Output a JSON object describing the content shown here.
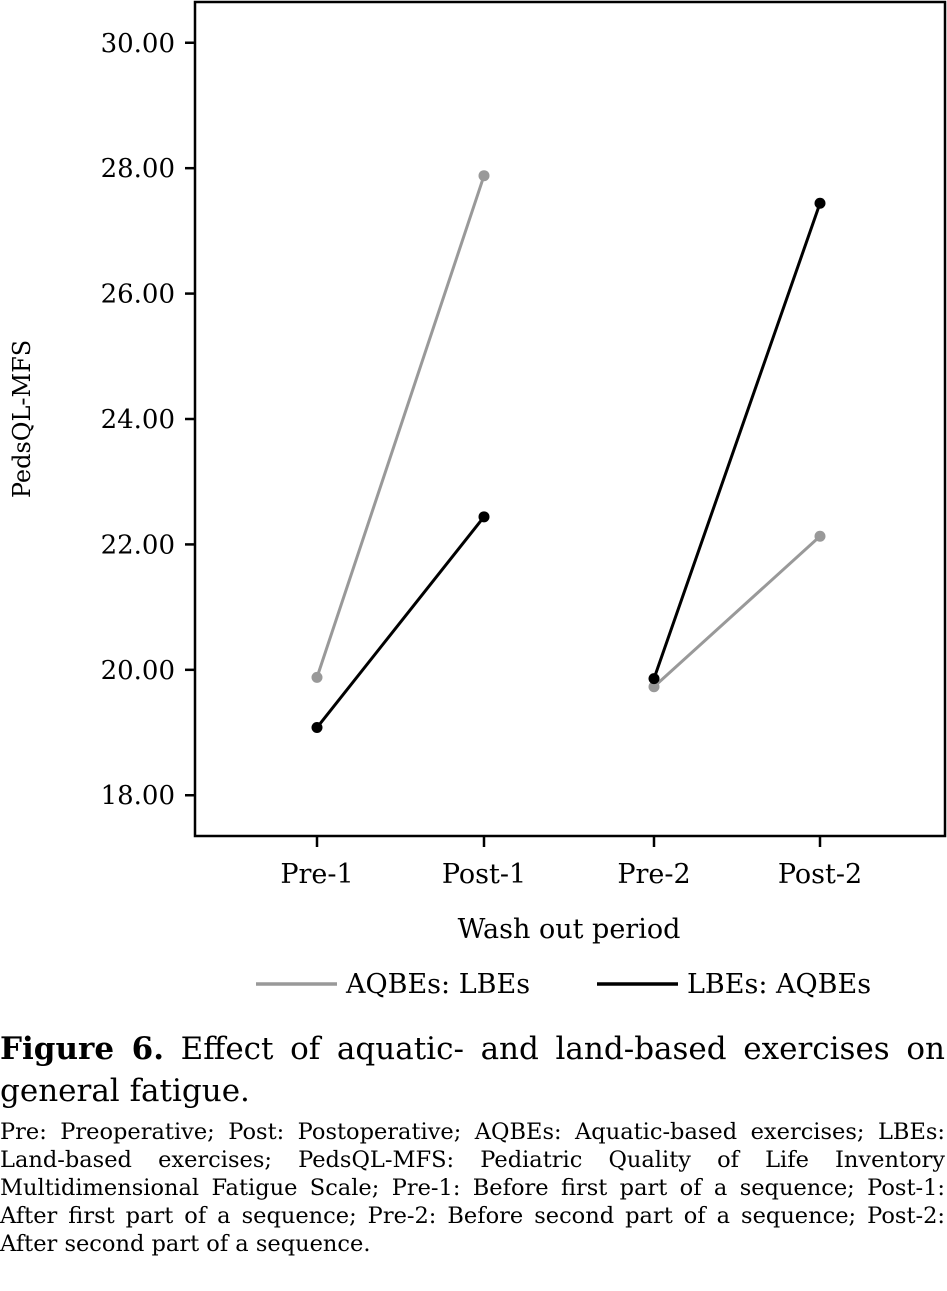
{
  "chart_data": {
    "type": "line",
    "title": "",
    "xlabel": "Wash out period",
    "ylabel": "PedsQL-MFS",
    "categories": [
      "Pre-1",
      "Post-1",
      "Pre-2",
      "Post-2"
    ],
    "ylim": [
      17.35,
      30.65
    ],
    "yticks": [
      18.0,
      20.0,
      22.0,
      24.0,
      26.0,
      28.0,
      30.0
    ],
    "ytick_labels": [
      "18.00",
      "20.00",
      "22.00",
      "24.00",
      "26.00",
      "28.00",
      "30.00"
    ],
    "grid": false,
    "legend_position": "bottom",
    "series": [
      {
        "name": "AQBEs: LBEs",
        "color": "#999999",
        "segments": [
          {
            "x": [
              "Pre-1",
              "Post-1"
            ],
            "values": [
              19.88,
              27.88
            ]
          },
          {
            "x": [
              "Pre-2",
              "Post-2"
            ],
            "values": [
              19.73,
              22.13
            ]
          }
        ]
      },
      {
        "name": "LBEs: AQBEs",
        "color": "#000000",
        "segments": [
          {
            "x": [
              "Pre-1",
              "Post-1"
            ],
            "values": [
              19.08,
              22.44
            ]
          },
          {
            "x": [
              "Pre-2",
              "Post-2"
            ],
            "values": [
              19.86,
              27.44
            ]
          }
        ]
      }
    ]
  },
  "caption": {
    "figure_label": "Figure 6.",
    "title": "Effect of aquatic- and land-based exercises on general fatigue.",
    "notes": "Pre: Preoperative; Post: Postoperative; AQBEs: Aquatic-based exercises; LBEs: Land-based exercises; PedsQL-MFS: Pediatric Quality of Life Inventory Multidimensional Fatigue Scale; Pre-1: Before first part of a sequence; Post-1: After first part of a sequence; Pre-2: Before second part of a sequence; Post-2: After second part of a sequence."
  }
}
